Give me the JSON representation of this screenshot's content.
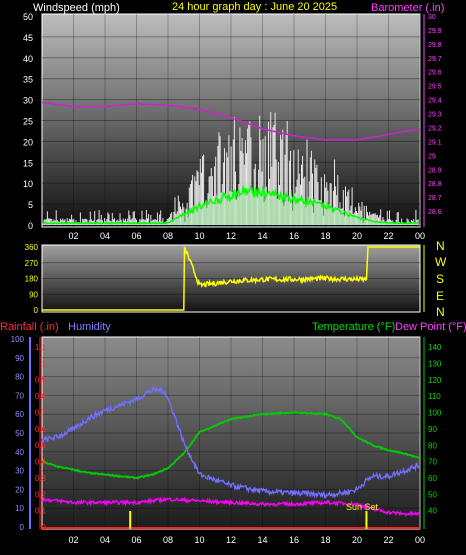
{
  "header": {
    "windspeed_label": "Windspeed (mph)",
    "title": "24 hour graph day : June 20 2025",
    "barometer_label": "Barometer (.in)"
  },
  "panel2": {
    "compass": [
      "N",
      "W",
      "S",
      "E",
      "N"
    ]
  },
  "panel3": {
    "rainfall_label": "Rainfall (.in)",
    "humidity_label": "Humidity",
    "temperature_label": "Temperature (°F)",
    "dewpoint_label": "Dew Point (°F)",
    "sunset_label": "Sun Set"
  },
  "colors": {
    "windspeed": "#ffffff",
    "wind_avg": "#00ff00",
    "barometer": "#d020d0",
    "direction": "#ffff00",
    "rainfall": "#ff2020",
    "humidity": "#7070ff",
    "temperature": "#00cc00",
    "dewpoint": "#ff00ff",
    "sun": "#ffff00"
  },
  "chart_data": [
    {
      "type": "line",
      "title": "24 hour graph day : June 20 2025",
      "x_ticks": [
        "02",
        "04",
        "06",
        "08",
        "10",
        "12",
        "14",
        "16",
        "18",
        "20",
        "22",
        "00"
      ],
      "y_left": {
        "label": "Windspeed (mph)",
        "range": [
          0,
          50
        ],
        "ticks": [
          0,
          5,
          10,
          15,
          20,
          25,
          30,
          35,
          40,
          45,
          50
        ]
      },
      "y_right": {
        "label": "Barometer (.in)",
        "range": [
          28.5,
          30
        ],
        "ticks": [
          "28.6",
          "28.7",
          "28.8",
          "28.9",
          "29",
          "29.1",
          "29.2",
          "29.3",
          "29.4",
          "29.5",
          "29.6",
          "29.7",
          "29.8",
          "29.9",
          "30"
        ]
      },
      "series": [
        {
          "name": "Windspeed (mph)",
          "x": [
            0,
            2,
            4,
            6,
            8,
            9,
            10,
            11,
            12,
            13,
            14,
            15,
            16,
            17,
            18,
            19,
            20,
            21,
            22,
            23,
            24
          ],
          "values": [
            1,
            1,
            1,
            1,
            1,
            6,
            10,
            13,
            16,
            18,
            17,
            16,
            14,
            12,
            10,
            7,
            4,
            2,
            1,
            1,
            1
          ]
        },
        {
          "name": "Barometer (.in)",
          "x": [
            0,
            2,
            4,
            6,
            8,
            10,
            12,
            14,
            16,
            18,
            20,
            22,
            24
          ],
          "values": [
            29.38,
            29.35,
            29.35,
            29.37,
            29.36,
            29.33,
            29.27,
            29.19,
            29.14,
            29.11,
            29.11,
            29.15,
            29.19
          ]
        }
      ]
    },
    {
      "type": "line",
      "y_left": {
        "range": [
          0,
          360
        ],
        "ticks": [
          0,
          90,
          180,
          270,
          360
        ]
      },
      "y_right_labels": [
        "N",
        "W",
        "S",
        "E",
        "N"
      ],
      "series": [
        {
          "name": "Wind Direction",
          "x": [
            0,
            9,
            9.05,
            10,
            12,
            14,
            16,
            18,
            20,
            20.6,
            20.7,
            24
          ],
          "values": [
            0,
            0,
            360,
            140,
            165,
            175,
            175,
            180,
            175,
            175,
            360,
            360
          ]
        }
      ]
    },
    {
      "type": "line",
      "x_ticks": [
        "02",
        "04",
        "06",
        "08",
        "10",
        "12",
        "14",
        "16",
        "18",
        "20",
        "22",
        "00"
      ],
      "y_rain": {
        "label": "Rainfall (.in)",
        "range": [
          0,
          1.1
        ],
        "ticks": [
          "0",
          "0.1",
          "0.2",
          "0.3",
          "0.4",
          "0.5",
          "0.6",
          "0.7",
          "0.8",
          "0.9",
          "1",
          "1.1"
        ]
      },
      "y_humidity": {
        "label": "Humidity",
        "range": [
          0,
          100
        ],
        "ticks": [
          0,
          10,
          20,
          30,
          40,
          50,
          60,
          70,
          80,
          90,
          100
        ]
      },
      "y_temp": {
        "label": "Temperature (°F)",
        "range": [
          30,
          145
        ],
        "ticks": [
          40,
          50,
          60,
          70,
          80,
          90,
          100,
          110,
          120,
          130,
          140
        ]
      },
      "series": [
        {
          "name": "Humidity",
          "x": [
            0,
            1,
            2,
            3,
            4,
            5,
            6,
            6.8,
            7.3,
            7.8,
            8.3,
            9,
            10,
            12,
            14,
            16,
            18,
            19,
            20,
            20.5,
            21,
            22,
            23,
            24
          ],
          "values": [
            46,
            48,
            52,
            58,
            62,
            65,
            68,
            72,
            73,
            72,
            62,
            45,
            28,
            22,
            19,
            18,
            17,
            18,
            20,
            24,
            27,
            27,
            30,
            33
          ]
        },
        {
          "name": "Temperature (°F)",
          "x": [
            0,
            1,
            2,
            3,
            4,
            5,
            6,
            7,
            8,
            9,
            10,
            12,
            14,
            16,
            18,
            19,
            20,
            21,
            22,
            23,
            24
          ],
          "values": [
            70,
            67,
            65,
            63,
            62,
            61,
            60,
            62,
            66,
            75,
            88,
            96,
            99,
            100,
            99,
            96,
            85,
            80,
            77,
            75,
            72
          ]
        },
        {
          "name": "Dew Point (°F)",
          "x": [
            0,
            2,
            4,
            6,
            8,
            10,
            12,
            14,
            16,
            18,
            20,
            21,
            22,
            23,
            24
          ],
          "values": [
            47,
            45,
            45,
            45,
            47,
            46,
            45,
            44,
            44,
            45,
            44,
            41,
            39,
            38,
            38
          ]
        },
        {
          "name": "Rainfall (.in)",
          "x": [
            0,
            24
          ],
          "values": [
            0,
            0
          ]
        }
      ],
      "markers": [
        {
          "name": "Sun Rise",
          "x": 5.6
        },
        {
          "name": "Sun Set",
          "x": 20.6
        }
      ]
    }
  ]
}
